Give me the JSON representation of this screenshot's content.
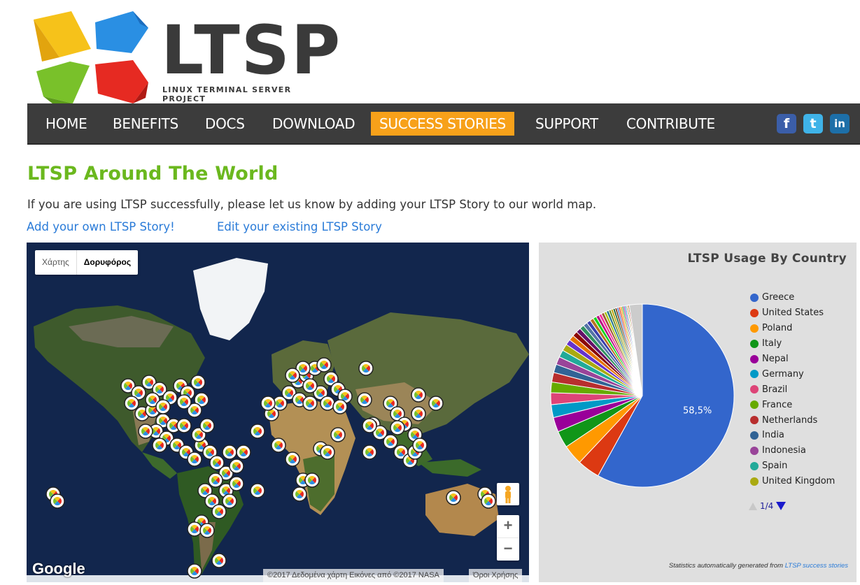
{
  "logo": {
    "word": "LTSP",
    "subtitle": "LINUX TERMINAL SERVER PROJECT"
  },
  "nav": {
    "items": [
      {
        "label": "HOME",
        "active": false
      },
      {
        "label": "BENEFITS",
        "active": false
      },
      {
        "label": "DOCS",
        "active": false
      },
      {
        "label": "DOWNLOAD",
        "active": false
      },
      {
        "label": "SUCCESS STORIES",
        "active": true
      },
      {
        "label": "SUPPORT",
        "active": false
      },
      {
        "label": "CONTRIBUTE",
        "active": false
      }
    ],
    "social": [
      {
        "icon": "facebook-icon",
        "glyph": "f",
        "color": "#3b5ea8"
      },
      {
        "icon": "twitter-icon",
        "glyph": "t",
        "color": "#3fb3e8"
      },
      {
        "icon": "linkedin-icon",
        "glyph": "in",
        "color": "#1d6fa8"
      }
    ],
    "accent": "#f7a11a"
  },
  "page": {
    "title": "LTSP Around The World",
    "intro": "If you are using LTSP successfully, please let us know by adding your LTSP Story to our world map.",
    "link_add": "Add your own LTSP Story!",
    "link_edit": "Edit your existing LTSP Story"
  },
  "map": {
    "type_map": "Χάρτης",
    "type_satellite": "Δορυφόρος",
    "zoom_in": "+",
    "zoom_out": "−",
    "brand": "Google",
    "attribution": "©2017 Δεδομένα χάρτη Εικόνες από ©2017 NASA",
    "terms": "Όροι Χρήσης"
  },
  "chart_data": {
    "type": "pie",
    "title": "LTSP Usage By Country",
    "slice_label": "58,5%",
    "series": [
      {
        "name": "Greece",
        "value": 58.5,
        "color": "#3366cc"
      },
      {
        "name": "United States",
        "value": 4.0,
        "color": "#dc3912"
      },
      {
        "name": "Poland",
        "value": 3.6,
        "color": "#ff9900"
      },
      {
        "name": "Italy",
        "value": 3.0,
        "color": "#109618"
      },
      {
        "name": "Nepal",
        "value": 2.6,
        "color": "#990099"
      },
      {
        "name": "Germany",
        "value": 2.3,
        "color": "#0099c6"
      },
      {
        "name": "Brazil",
        "value": 2.1,
        "color": "#dd4477"
      },
      {
        "name": "France",
        "value": 1.9,
        "color": "#66aa00"
      },
      {
        "name": "Netherlands",
        "value": 1.7,
        "color": "#b82e2e"
      },
      {
        "name": "India",
        "value": 1.5,
        "color": "#316395"
      },
      {
        "name": "Indonesia",
        "value": 1.4,
        "color": "#994499"
      },
      {
        "name": "Spain",
        "value": 1.3,
        "color": "#22aa99"
      },
      {
        "name": "United Kingdom",
        "value": 1.2,
        "color": "#aaaa11"
      }
    ],
    "other_values": [
      1.0,
      0.95,
      0.9,
      0.85,
      0.8,
      0.75,
      0.7,
      0.65,
      0.6,
      0.55,
      0.5,
      0.5,
      0.45,
      0.45,
      0.4,
      0.4,
      0.35,
      0.35,
      0.3,
      0.3,
      0.3,
      0.25,
      0.25,
      0.25,
      0.2,
      0.2,
      0.2,
      2.3
    ],
    "other_colors": [
      "#6633cc",
      "#e67300",
      "#8b0707",
      "#651067",
      "#329262",
      "#5574a6",
      "#3b3eac",
      "#b77322",
      "#16d620",
      "#b91383",
      "#f4359e",
      "#9c5935",
      "#a9c413",
      "#2a778d",
      "#668d1c",
      "#bea413",
      "#0c5922",
      "#743411",
      "#3366cc",
      "#dc3912",
      "#ff9900",
      "#109618",
      "#990099",
      "#0099c6",
      "#dd4477",
      "#66aa00",
      "#b82e2e",
      "#cccccc"
    ],
    "legend_placement": "right",
    "pager": "1/4",
    "footnote_prefix": "Statistics automatically generated from ",
    "footnote_link": "LTSP success stories"
  }
}
